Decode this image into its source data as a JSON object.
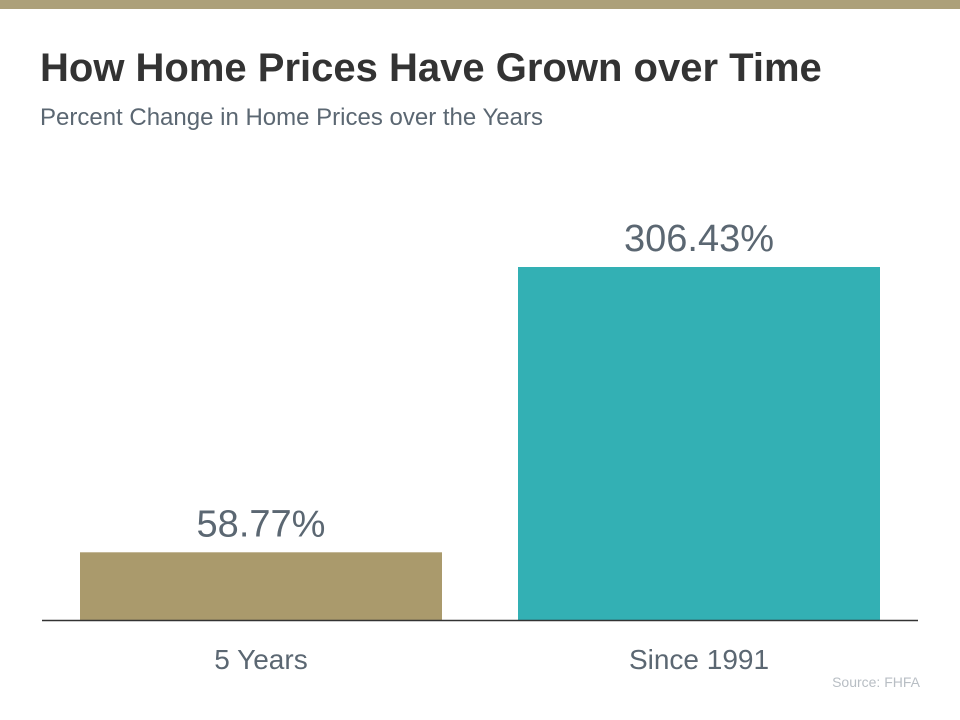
{
  "title": "How Home Prices Have Grown over Time",
  "subtitle": "Percent Change in Home Prices over the Years",
  "source": "Source: FHFA",
  "colors": {
    "band": "#aca07a",
    "bar_1": "#aa9a6c",
    "bar_2": "#33b0b4",
    "text": "#5b6772",
    "baseline": "#333333"
  },
  "chart_data": {
    "type": "bar",
    "title": "How Home Prices Have Grown over Time",
    "subtitle": "Percent Change in Home Prices over the Years",
    "xlabel": "",
    "ylabel": "",
    "categories": [
      "5 Years",
      "Since 1991"
    ],
    "values": [
      58.77,
      306.43
    ],
    "data_labels": [
      "58.77%",
      "306.43%"
    ],
    "ylim": [
      0,
      306.43
    ],
    "grid": false,
    "legend": "none"
  }
}
